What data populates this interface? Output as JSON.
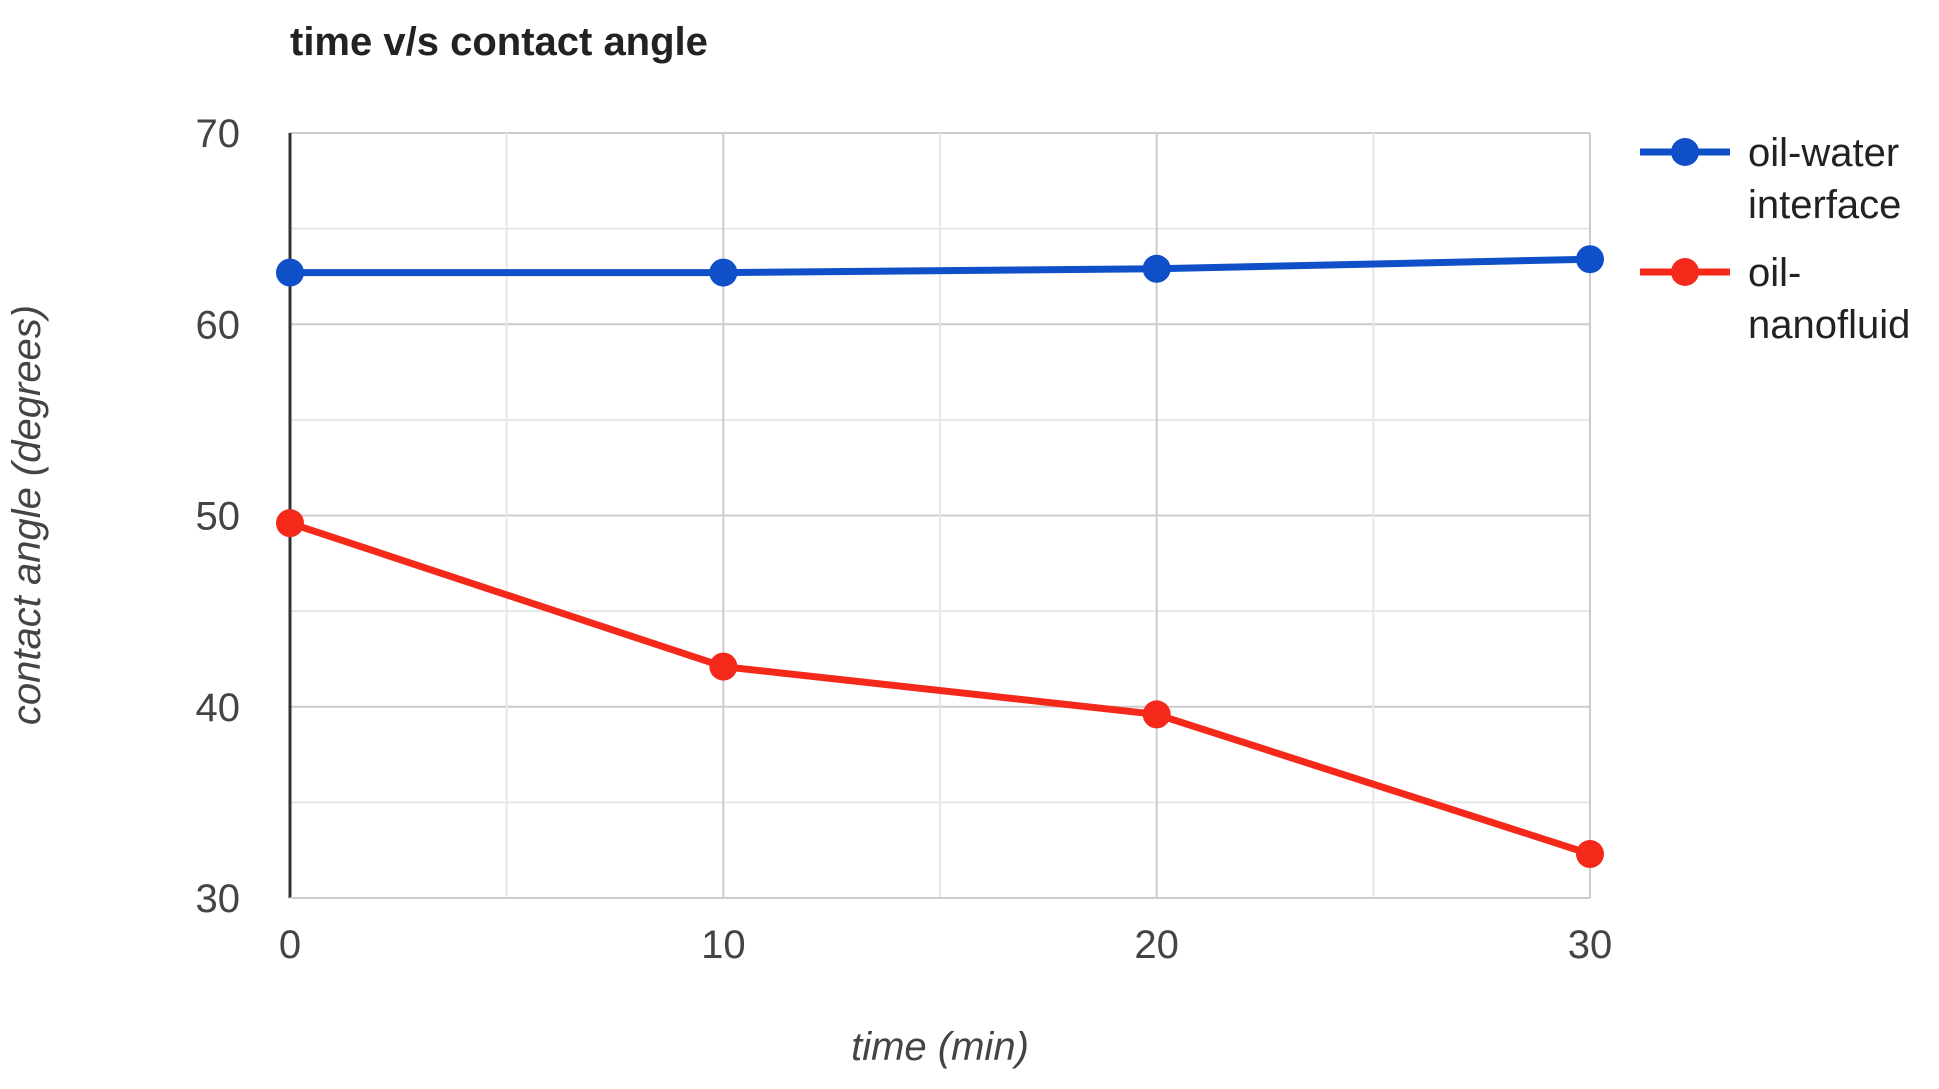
{
  "chart_data": {
    "type": "line",
    "title": "time v/s contact angle",
    "xlabel": "time (min)",
    "ylabel": "contact angle (degrees)",
    "x": [
      0,
      10,
      20,
      30
    ],
    "xlim": [
      0,
      30
    ],
    "ylim": [
      30,
      70
    ],
    "xticks": [
      "0",
      "10",
      "20",
      "30"
    ],
    "yticks": [
      "30",
      "40",
      "50",
      "60",
      "70"
    ],
    "grid": true,
    "legend_position": "right",
    "series": [
      {
        "name": "oil-water interface",
        "legend_lines": [
          "oil-water",
          "interface"
        ],
        "color": "#0f4fc8",
        "values": [
          62.7,
          62.7,
          62.9,
          63.4
        ]
      },
      {
        "name": "oil-nanofluid",
        "legend_lines": [
          "oil-",
          "nanofluid"
        ],
        "color": "#f5291a",
        "values": [
          49.6,
          42.1,
          39.6,
          32.3
        ]
      }
    ]
  }
}
